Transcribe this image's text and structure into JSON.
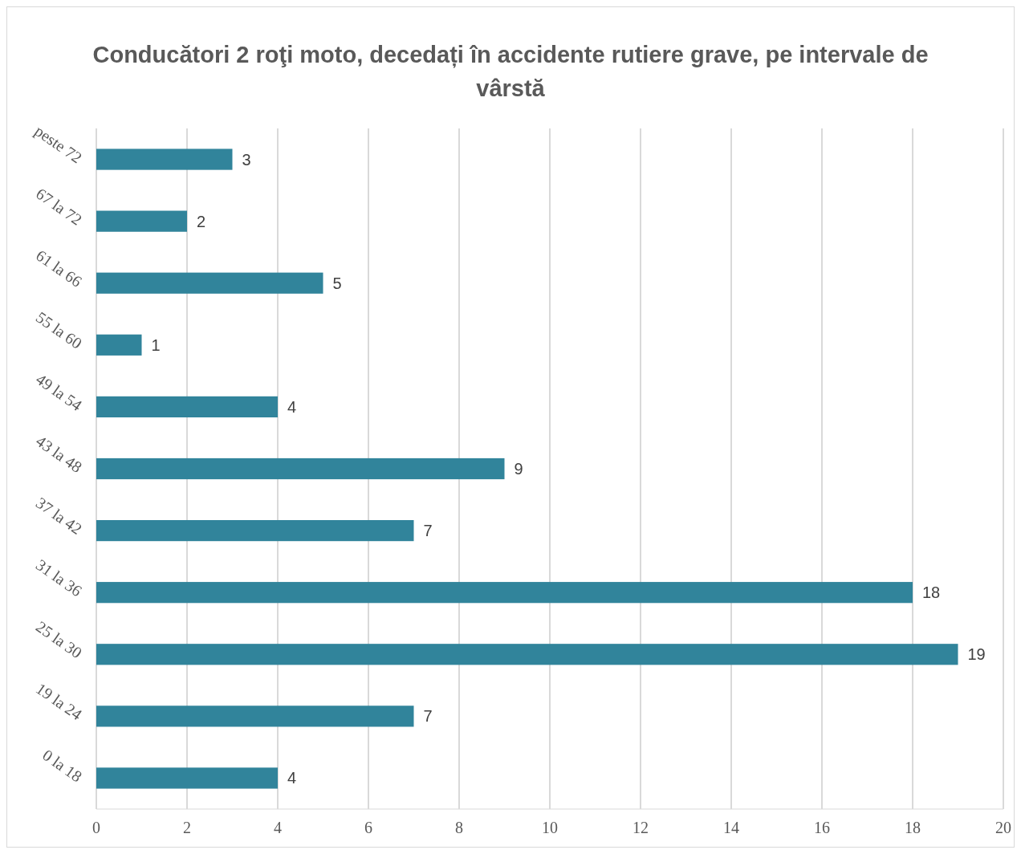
{
  "chart_data": {
    "type": "bar",
    "orientation": "horizontal",
    "title": "Conducători 2 roţi moto, decedați în accidente rutiere grave, pe intervale de vârstă",
    "categories": [
      "peste 72",
      "67 la 72",
      "61 la 66",
      "55 la 60",
      "49 la 54",
      "43 la 48",
      "37 la 42",
      "31 la 36",
      "25 la 30",
      "19 la 24",
      "0 la 18"
    ],
    "values": [
      3,
      2,
      5,
      1,
      4,
      9,
      7,
      18,
      19,
      7,
      4
    ],
    "color": "#31849b",
    "data_labels": true,
    "grid": "x",
    "xlim": [
      0,
      20
    ],
    "xticks": [
      0,
      2,
      4,
      6,
      8,
      10,
      12,
      14,
      16,
      18,
      20
    ]
  }
}
